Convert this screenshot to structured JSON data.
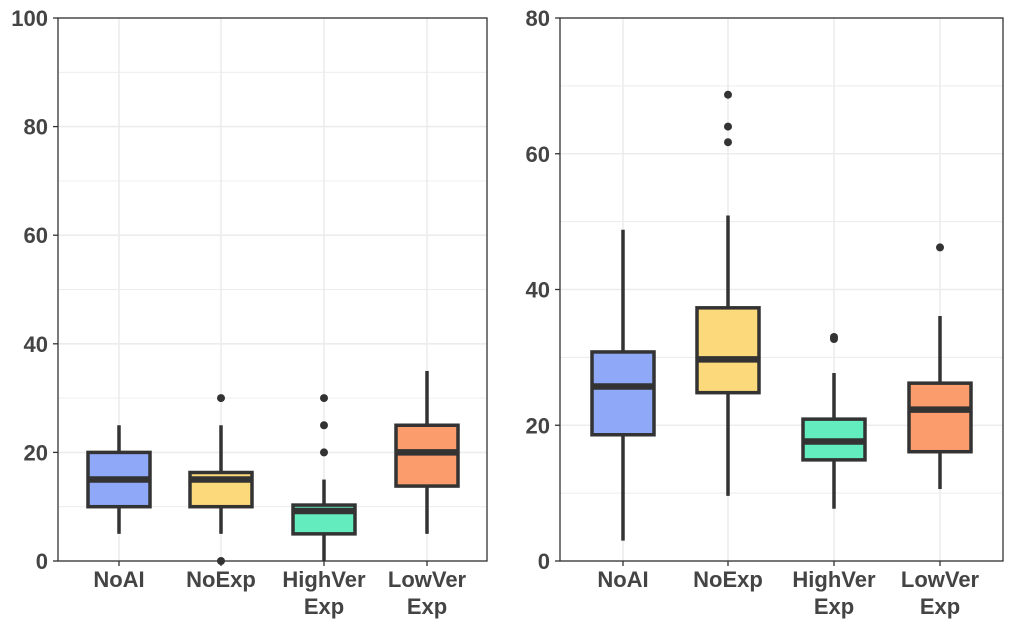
{
  "chart_data": [
    {
      "type": "box",
      "title": "",
      "xlabel": "",
      "ylabel": "",
      "ylim": [
        0,
        100
      ],
      "yticks": [
        0,
        20,
        40,
        60,
        80,
        100
      ],
      "grid": true,
      "legend": "none",
      "categories": [
        {
          "lines": [
            "NoAI"
          ]
        },
        {
          "lines": [
            "NoExp"
          ]
        },
        {
          "lines": [
            "HighVer",
            "Exp"
          ]
        },
        {
          "lines": [
            "LowVer",
            "Exp"
          ]
        }
      ],
      "series": [
        {
          "color": "#8fa8f8",
          "whisker_low": 5,
          "q1": 10,
          "median": 15,
          "q3": 20,
          "whisker_high": 25,
          "outliers": []
        },
        {
          "color": "#fcd97a",
          "whisker_low": 5,
          "q1": 10,
          "median": 15,
          "q3": 16.3,
          "whisker_high": 25,
          "outliers": [
            0,
            30
          ]
        },
        {
          "color": "#63ecbd",
          "whisker_low": 0,
          "q1": 5,
          "median": 9.2,
          "q3": 10.3,
          "whisker_high": 15,
          "outliers": [
            20,
            25,
            30
          ]
        },
        {
          "color": "#fb9c6c",
          "whisker_low": 5,
          "q1": 13.8,
          "median": 20,
          "q3": 25,
          "whisker_high": 35,
          "outliers": []
        }
      ]
    },
    {
      "type": "box",
      "title": "",
      "xlabel": "",
      "ylabel": "",
      "ylim": [
        0,
        80
      ],
      "yticks": [
        0,
        20,
        40,
        60,
        80
      ],
      "grid": true,
      "legend": "none",
      "categories": [
        {
          "lines": [
            "NoAI"
          ]
        },
        {
          "lines": [
            "NoExp"
          ]
        },
        {
          "lines": [
            "HighVer",
            "Exp"
          ]
        },
        {
          "lines": [
            "LowVer",
            "Exp"
          ]
        }
      ],
      "series": [
        {
          "color": "#8fa8f8",
          "whisker_low": 3,
          "q1": 18.6,
          "median": 25.7,
          "q3": 30.8,
          "whisker_high": 48.8,
          "outliers": []
        },
        {
          "color": "#fcd97a",
          "whisker_low": 9.6,
          "q1": 24.8,
          "median": 29.7,
          "q3": 37.3,
          "whisker_high": 50.9,
          "outliers": [
            61.7,
            64,
            68.7
          ]
        },
        {
          "color": "#63ecbd",
          "whisker_low": 7.7,
          "q1": 14.9,
          "median": 17.6,
          "q3": 20.9,
          "whisker_high": 27.7,
          "outliers": [
            32.7,
            33
          ]
        },
        {
          "color": "#fb9c6c",
          "whisker_low": 10.6,
          "q1": 16.1,
          "median": 22.3,
          "q3": 26.2,
          "whisker_high": 36.1,
          "outliers": [
            46.2
          ]
        }
      ]
    }
  ]
}
